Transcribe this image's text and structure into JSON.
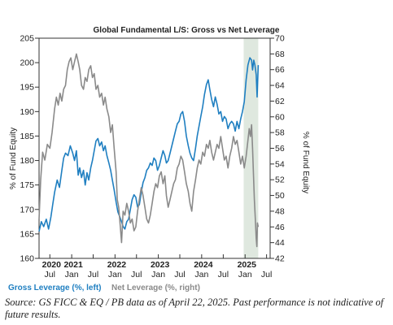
{
  "chart_data": {
    "type": "line",
    "title": "Global Fundamental L/S: Gross vs Net Leverage",
    "ylabel_left": "% of Fund Equity",
    "ylabel_right": "% of Fund Equity",
    "ylim_left": [
      160,
      205
    ],
    "ylim_right": [
      42,
      70
    ],
    "yticks_left": [
      "160",
      "165",
      "170",
      "175",
      "180",
      "185",
      "190",
      "195",
      "200",
      "205"
    ],
    "yticks_right": [
      "42",
      "44",
      "46",
      "48",
      "50",
      "52",
      "54",
      "56",
      "58",
      "60",
      "62",
      "64",
      "66",
      "68",
      "70"
    ],
    "xlim": [
      "2020-04-01",
      "2025-07-31"
    ],
    "xticks": [
      {
        "date": "2020-07-01",
        "label": "Jul"
      },
      {
        "date": "2021-01-01",
        "label": "Jan"
      },
      {
        "date": "2021-07-01",
        "label": "Jul"
      },
      {
        "date": "2022-01-01",
        "label": "Jan"
      },
      {
        "date": "2022-07-01",
        "label": "Jul"
      },
      {
        "date": "2023-01-01",
        "label": "Jan"
      },
      {
        "date": "2023-07-01",
        "label": "Jul"
      },
      {
        "date": "2024-01-01",
        "label": "Jan"
      },
      {
        "date": "2024-07-01",
        "label": "Jul"
      },
      {
        "date": "2025-01-01",
        "label": "Jan"
      },
      {
        "date": "2025-07-01",
        "label": "Jul"
      }
    ],
    "year_labels": [
      {
        "date": "2020-07-15",
        "label": "2020"
      },
      {
        "date": "2021-01-15",
        "label": "2021"
      },
      {
        "date": "2022-01-15",
        "label": "2022"
      },
      {
        "date": "2023-01-15",
        "label": "2023"
      },
      {
        "date": "2024-01-15",
        "label": "2024"
      },
      {
        "date": "2025-01-15",
        "label": "2025"
      }
    ],
    "shaded_region": {
      "start": "2024-12-20",
      "end": "2025-04-22",
      "color": "#dfe8df"
    },
    "grid": false,
    "legend_position": "bottom-left",
    "series": [
      {
        "name": "Gross Leverage (%, left)",
        "axis": "left",
        "color": "#1f7fc1",
        "points": [
          [
            "2020-04-01",
            165.5
          ],
          [
            "2020-04-20",
            167.5
          ],
          [
            "2020-05-10",
            166.5
          ],
          [
            "2020-06-01",
            168.0
          ],
          [
            "2020-06-20",
            166.0
          ],
          [
            "2020-07-10",
            168.5
          ],
          [
            "2020-07-25",
            171.0
          ],
          [
            "2020-08-10",
            173.5
          ],
          [
            "2020-09-01",
            176.0
          ],
          [
            "2020-09-20",
            174.5
          ],
          [
            "2020-10-10",
            178.0
          ],
          [
            "2020-10-25",
            180.5
          ],
          [
            "2020-11-10",
            181.5
          ],
          [
            "2020-12-01",
            181.0
          ],
          [
            "2020-12-20",
            183.0
          ],
          [
            "2021-01-10",
            181.5
          ],
          [
            "2021-01-25",
            180.0
          ],
          [
            "2021-02-10",
            182.0
          ],
          [
            "2021-02-25",
            177.0
          ],
          [
            "2021-03-10",
            178.5
          ],
          [
            "2021-03-25",
            176.5
          ],
          [
            "2021-04-10",
            178.0
          ],
          [
            "2021-04-25",
            175.0
          ],
          [
            "2021-05-10",
            177.5
          ],
          [
            "2021-05-25",
            176.0
          ],
          [
            "2021-06-10",
            178.5
          ],
          [
            "2021-06-25",
            180.0
          ],
          [
            "2021-07-10",
            182.0
          ],
          [
            "2021-07-25",
            184.0
          ],
          [
            "2021-08-10",
            184.5
          ],
          [
            "2021-08-25",
            183.0
          ],
          [
            "2021-09-10",
            183.8
          ],
          [
            "2021-09-25",
            182.0
          ],
          [
            "2021-10-10",
            183.0
          ],
          [
            "2021-10-25",
            181.0
          ],
          [
            "2021-11-10",
            179.5
          ],
          [
            "2021-11-25",
            178.0
          ],
          [
            "2021-12-10",
            176.0
          ],
          [
            "2021-12-25",
            174.0
          ],
          [
            "2022-01-10",
            171.5
          ],
          [
            "2022-01-25",
            169.5
          ],
          [
            "2022-02-10",
            168.5
          ],
          [
            "2022-02-25",
            167.5
          ],
          [
            "2022-03-10",
            166.5
          ],
          [
            "2022-03-25",
            166.0
          ],
          [
            "2022-04-10",
            167.5
          ],
          [
            "2022-04-25",
            168.0
          ],
          [
            "2022-05-10",
            170.0
          ],
          [
            "2022-05-25",
            172.0
          ],
          [
            "2022-06-10",
            173.0
          ],
          [
            "2022-06-25",
            172.5
          ],
          [
            "2022-07-10",
            170.5
          ],
          [
            "2022-07-25",
            171.0
          ],
          [
            "2022-08-10",
            173.5
          ],
          [
            "2022-08-25",
            175.5
          ],
          [
            "2022-09-10",
            176.5
          ],
          [
            "2022-09-25",
            178.0
          ],
          [
            "2022-10-10",
            178.5
          ],
          [
            "2022-10-25",
            179.5
          ],
          [
            "2022-11-10",
            179.0
          ],
          [
            "2022-11-25",
            180.5
          ],
          [
            "2022-12-10",
            180.0
          ],
          [
            "2022-12-25",
            178.0
          ],
          [
            "2023-01-10",
            179.0
          ],
          [
            "2023-01-25",
            180.5
          ],
          [
            "2023-02-10",
            182.0
          ],
          [
            "2023-02-25",
            181.0
          ],
          [
            "2023-03-10",
            179.5
          ],
          [
            "2023-03-25",
            180.0
          ],
          [
            "2023-04-10",
            181.5
          ],
          [
            "2023-04-25",
            183.0
          ],
          [
            "2023-05-10",
            184.5
          ],
          [
            "2023-05-25",
            186.0
          ],
          [
            "2023-06-10",
            187.5
          ],
          [
            "2023-06-25",
            188.0
          ],
          [
            "2023-07-10",
            189.5
          ],
          [
            "2023-07-25",
            190.0
          ],
          [
            "2023-08-10",
            188.0
          ],
          [
            "2023-08-25",
            185.0
          ],
          [
            "2023-09-10",
            183.0
          ],
          [
            "2023-09-25",
            181.5
          ],
          [
            "2023-10-10",
            180.5
          ],
          [
            "2023-10-25",
            180.0
          ],
          [
            "2023-11-10",
            182.5
          ],
          [
            "2023-11-25",
            185.0
          ],
          [
            "2023-12-10",
            187.0
          ],
          [
            "2023-12-25",
            189.0
          ],
          [
            "2024-01-10",
            191.0
          ],
          [
            "2024-01-25",
            193.5
          ],
          [
            "2024-02-10",
            195.5
          ],
          [
            "2024-02-25",
            196.5
          ],
          [
            "2024-03-10",
            194.5
          ],
          [
            "2024-03-25",
            192.5
          ],
          [
            "2024-04-10",
            191.0
          ],
          [
            "2024-04-25",
            193.0
          ],
          [
            "2024-05-10",
            191.5
          ],
          [
            "2024-05-25",
            189.5
          ],
          [
            "2024-06-10",
            190.0
          ],
          [
            "2024-06-25",
            188.0
          ],
          [
            "2024-07-10",
            189.0
          ],
          [
            "2024-07-25",
            188.5
          ],
          [
            "2024-08-10",
            186.5
          ],
          [
            "2024-08-25",
            187.5
          ],
          [
            "2024-09-10",
            188.0
          ],
          [
            "2024-09-25",
            187.5
          ],
          [
            "2024-10-10",
            186.0
          ],
          [
            "2024-10-25",
            188.0
          ],
          [
            "2024-11-10",
            186.5
          ],
          [
            "2024-11-25",
            188.5
          ],
          [
            "2024-12-10",
            190.0
          ],
          [
            "2024-12-25",
            192.0
          ],
          [
            "2025-01-10",
            196.5
          ],
          [
            "2025-01-25",
            199.5
          ],
          [
            "2025-02-10",
            201.0
          ],
          [
            "2025-02-25",
            200.5
          ],
          [
            "2025-03-05",
            198.5
          ],
          [
            "2025-03-15",
            200.5
          ],
          [
            "2025-03-25",
            199.5
          ],
          [
            "2025-04-05",
            197.5
          ],
          [
            "2025-04-12",
            193.0
          ],
          [
            "2025-04-22",
            199.5
          ]
        ]
      },
      {
        "name": "Net Leverage (%, right)",
        "axis": "right",
        "color": "#8a8a8a",
        "points": [
          [
            "2020-04-01",
            47.0
          ],
          [
            "2020-04-15",
            52.0
          ],
          [
            "2020-05-01",
            55.5
          ],
          [
            "2020-05-20",
            54.5
          ],
          [
            "2020-06-10",
            56.5
          ],
          [
            "2020-07-01",
            56.0
          ],
          [
            "2020-07-20",
            58.0
          ],
          [
            "2020-08-10",
            61.0
          ],
          [
            "2020-08-25",
            62.5
          ],
          [
            "2020-09-10",
            61.5
          ],
          [
            "2020-09-25",
            63.0
          ],
          [
            "2020-10-10",
            62.0
          ],
          [
            "2020-10-25",
            63.5
          ],
          [
            "2020-11-10",
            64.0
          ],
          [
            "2020-11-25",
            66.0
          ],
          [
            "2020-12-10",
            67.0
          ],
          [
            "2020-12-25",
            67.5
          ],
          [
            "2021-01-10",
            66.0
          ],
          [
            "2021-01-25",
            67.0
          ],
          [
            "2021-02-10",
            68.0
          ],
          [
            "2021-02-25",
            67.0
          ],
          [
            "2021-03-10",
            66.0
          ],
          [
            "2021-03-25",
            64.0
          ],
          [
            "2021-04-10",
            63.5
          ],
          [
            "2021-04-25",
            65.0
          ],
          [
            "2021-05-10",
            64.5
          ],
          [
            "2021-05-25",
            66.0
          ],
          [
            "2021-06-10",
            66.5
          ],
          [
            "2021-06-25",
            65.0
          ],
          [
            "2021-07-10",
            65.5
          ],
          [
            "2021-07-25",
            63.5
          ],
          [
            "2021-08-10",
            64.0
          ],
          [
            "2021-08-25",
            62.5
          ],
          [
            "2021-09-10",
            63.0
          ],
          [
            "2021-09-25",
            61.5
          ],
          [
            "2021-10-10",
            62.5
          ],
          [
            "2021-10-25",
            61.0
          ],
          [
            "2021-11-10",
            60.0
          ],
          [
            "2021-11-25",
            58.0
          ],
          [
            "2021-12-10",
            59.0
          ],
          [
            "2021-12-25",
            56.0
          ],
          [
            "2022-01-10",
            53.0
          ],
          [
            "2022-01-20",
            49.5
          ],
          [
            "2022-02-01",
            48.5
          ],
          [
            "2022-02-15",
            46.0
          ],
          [
            "2022-02-25",
            44.0
          ],
          [
            "2022-03-10",
            48.0
          ],
          [
            "2022-03-25",
            47.5
          ],
          [
            "2022-04-10",
            49.0
          ],
          [
            "2022-04-25",
            48.0
          ],
          [
            "2022-05-10",
            46.5
          ],
          [
            "2022-05-25",
            47.0
          ],
          [
            "2022-06-10",
            45.5
          ],
          [
            "2022-06-25",
            46.0
          ],
          [
            "2022-07-10",
            48.0
          ],
          [
            "2022-07-25",
            49.5
          ],
          [
            "2022-08-10",
            51.0
          ],
          [
            "2022-08-25",
            50.0
          ],
          [
            "2022-09-10",
            48.5
          ],
          [
            "2022-09-25",
            47.0
          ],
          [
            "2022-10-10",
            46.5
          ],
          [
            "2022-10-25",
            47.5
          ],
          [
            "2022-11-10",
            49.0
          ],
          [
            "2022-11-25",
            50.5
          ],
          [
            "2022-12-10",
            51.5
          ],
          [
            "2022-12-25",
            51.0
          ],
          [
            "2023-01-10",
            52.5
          ],
          [
            "2023-01-25",
            53.0
          ],
          [
            "2023-02-10",
            51.5
          ],
          [
            "2023-02-25",
            52.5
          ],
          [
            "2023-03-10",
            50.0
          ],
          [
            "2023-03-25",
            48.5
          ],
          [
            "2023-04-10",
            49.5
          ],
          [
            "2023-04-25",
            50.5
          ],
          [
            "2023-05-10",
            51.5
          ],
          [
            "2023-05-25",
            52.0
          ],
          [
            "2023-06-10",
            53.5
          ],
          [
            "2023-06-25",
            54.0
          ],
          [
            "2023-07-10",
            55.0
          ],
          [
            "2023-07-25",
            54.5
          ],
          [
            "2023-08-10",
            53.0
          ],
          [
            "2023-08-25",
            51.5
          ],
          [
            "2023-09-10",
            50.5
          ],
          [
            "2023-09-25",
            49.0
          ],
          [
            "2023-10-10",
            48.0
          ],
          [
            "2023-10-25",
            50.5
          ],
          [
            "2023-11-10",
            52.0
          ],
          [
            "2023-11-25",
            53.5
          ],
          [
            "2023-12-10",
            54.5
          ],
          [
            "2023-12-25",
            54.0
          ],
          [
            "2024-01-10",
            55.5
          ],
          [
            "2024-01-25",
            55.0
          ],
          [
            "2024-02-10",
            56.5
          ],
          [
            "2024-02-25",
            56.0
          ],
          [
            "2024-03-10",
            57.0
          ],
          [
            "2024-03-25",
            55.5
          ],
          [
            "2024-04-10",
            54.5
          ],
          [
            "2024-04-25",
            55.5
          ],
          [
            "2024-05-10",
            56.5
          ],
          [
            "2024-05-25",
            56.0
          ],
          [
            "2024-06-10",
            57.5
          ],
          [
            "2024-06-25",
            56.0
          ],
          [
            "2024-07-10",
            54.5
          ],
          [
            "2024-07-25",
            55.0
          ],
          [
            "2024-08-10",
            53.5
          ],
          [
            "2024-08-25",
            55.0
          ],
          [
            "2024-09-10",
            56.0
          ],
          [
            "2024-09-25",
            57.5
          ],
          [
            "2024-10-10",
            56.5
          ],
          [
            "2024-10-25",
            57.0
          ],
          [
            "2024-11-10",
            55.5
          ],
          [
            "2024-11-25",
            54.0
          ],
          [
            "2024-12-10",
            55.0
          ],
          [
            "2024-12-25",
            53.5
          ],
          [
            "2025-01-10",
            55.0
          ],
          [
            "2025-01-25",
            57.0
          ],
          [
            "2025-02-05",
            58.5
          ],
          [
            "2025-02-15",
            57.5
          ],
          [
            "2025-02-25",
            59.0
          ],
          [
            "2025-03-05",
            56.0
          ],
          [
            "2025-03-12",
            53.0
          ],
          [
            "2025-03-20",
            49.5
          ],
          [
            "2025-03-28",
            47.0
          ],
          [
            "2025-04-05",
            44.5
          ],
          [
            "2025-04-10",
            43.5
          ],
          [
            "2025-04-15",
            46.5
          ],
          [
            "2025-04-22",
            46.0
          ]
        ]
      }
    ]
  },
  "legend": {
    "gross_label": "Gross Leverage (%, left)",
    "net_label": "Net Leverage (%, right)",
    "gross_color": "#1f7fc1",
    "net_color": "#8a8a8a"
  },
  "source_note": "Source: GS FICC & EQ / PB  data as of April 22, 2025. Past performance is not indicative of future results."
}
